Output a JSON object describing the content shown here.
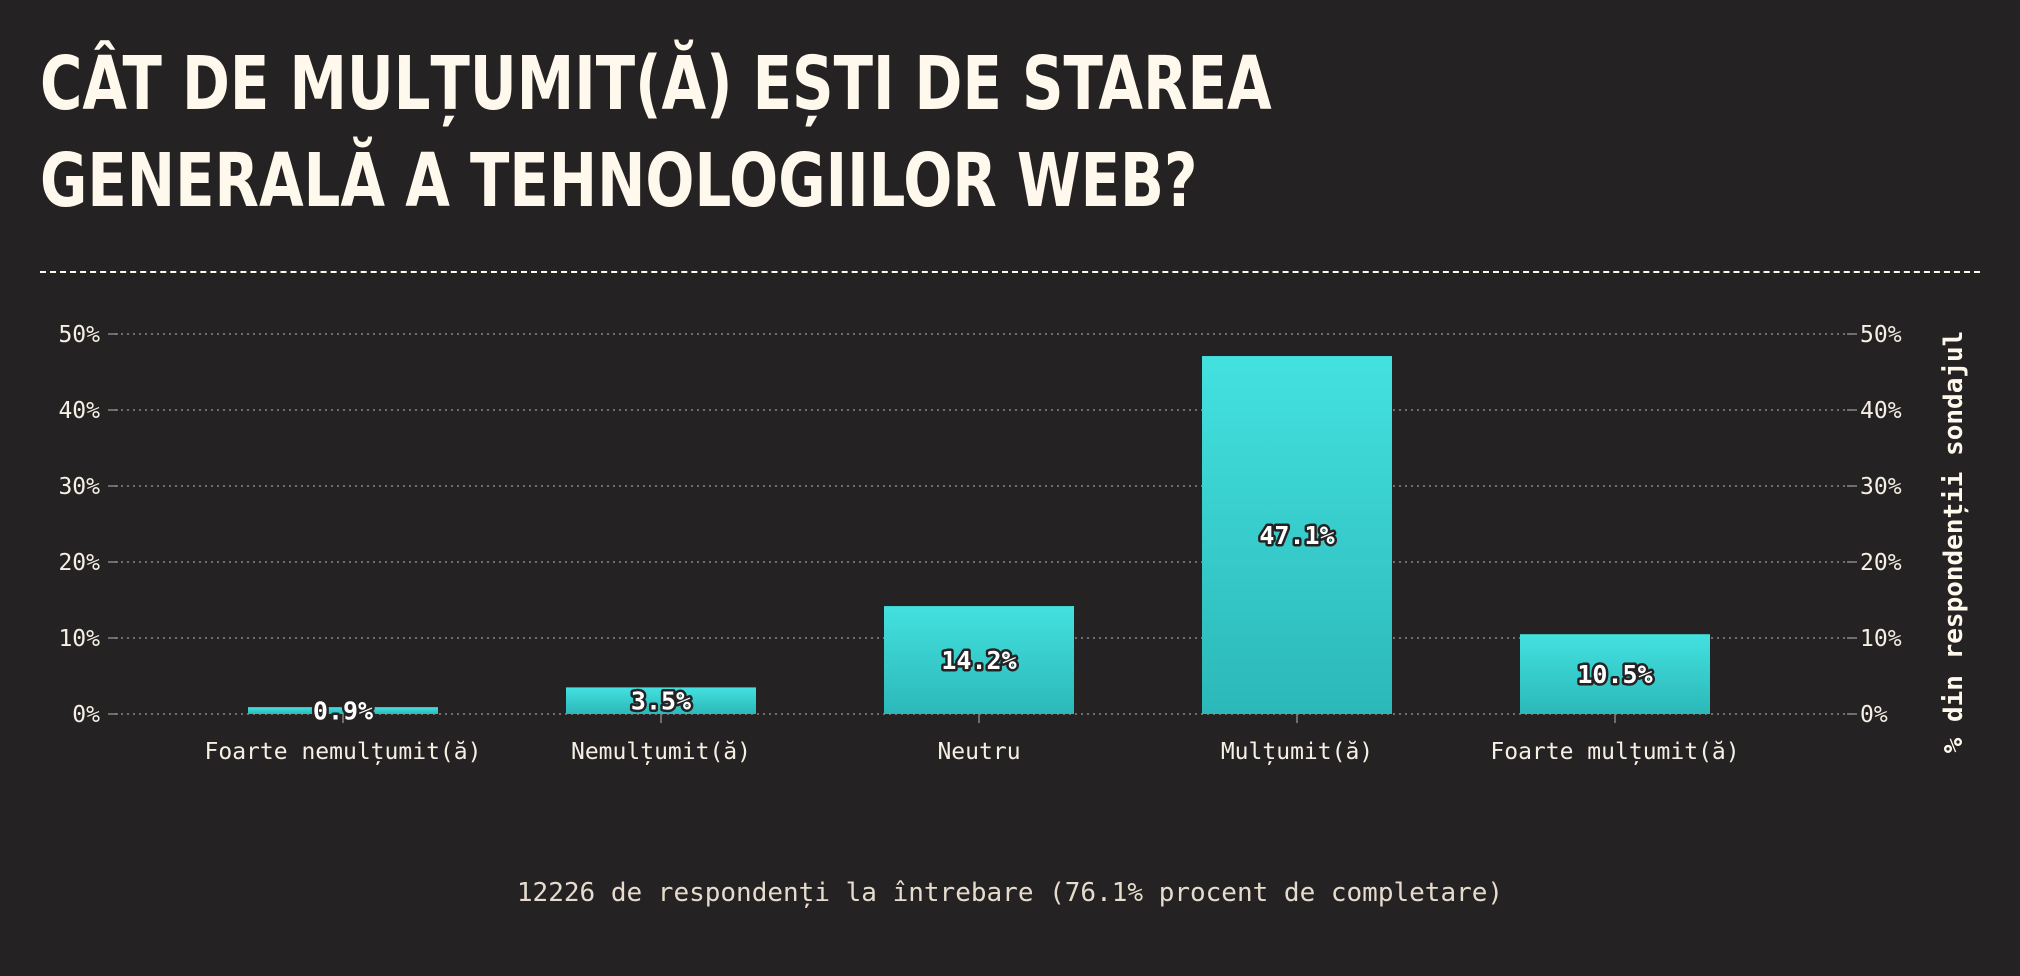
{
  "title": "CÂT DE MULȚUMIT(Ă) EȘTI DE STAREA GENERALĂ A TEHNOLOGIILOR WEB?",
  "note": "12226 de respondenți la întrebare (76.1% procent de completare)",
  "colors": {
    "background": "#252223",
    "bar_top": "#43e1e0",
    "bar_bottom": "#2cb8b8",
    "text": "#fff8ec",
    "grid": "#8a8580"
  },
  "chart_data": {
    "type": "bar",
    "categories": [
      "Foarte nemulțumit(ă)",
      "Nemulțumit(ă)",
      "Neutru",
      "Mulțumit(ă)",
      "Foarte mulțumit(ă)"
    ],
    "values": [
      0.9,
      3.5,
      14.2,
      47.1,
      10.5
    ],
    "value_labels": [
      "0.9%",
      "3.5%",
      "14.2%",
      "47.1%",
      "10.5%"
    ],
    "yticks": [
      0,
      10,
      20,
      30,
      40,
      50
    ],
    "ytick_labels": [
      "0%",
      "10%",
      "20%",
      "30%",
      "40%",
      "50%"
    ],
    "ylim": [
      0,
      50
    ],
    "ylabel": "% din respondenții sondajul",
    "grid": true,
    "dual_y_axis": true
  }
}
